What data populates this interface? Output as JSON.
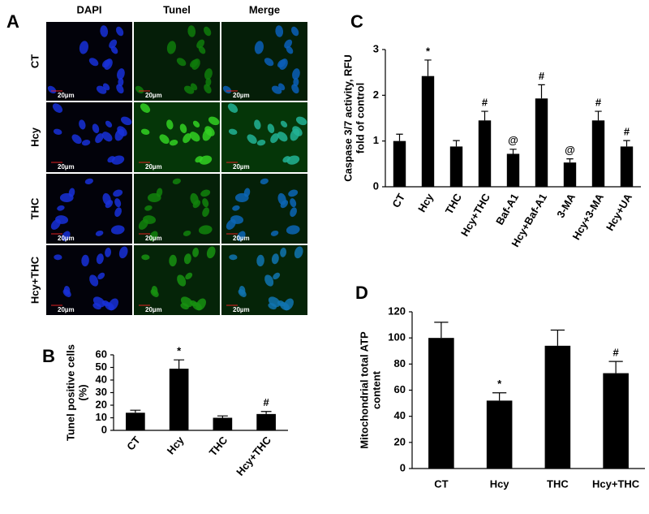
{
  "panel_a": {
    "panel": "A",
    "columns": [
      "DAPI",
      "Tunel",
      "Merge"
    ],
    "rows": [
      "CT",
      "Hcy",
      "THC",
      "Hcy+THC"
    ],
    "scale_bar": "20µm"
  },
  "chart_data": [
    {
      "type": "bar",
      "panel": "B",
      "ylabel": [
        "Tunel positive cells",
        "(%)"
      ],
      "categories": [
        "CT",
        "Hcy",
        "THC",
        "Hcy+THC"
      ],
      "values": [
        14,
        49,
        10,
        13
      ],
      "errors": [
        2,
        7,
        1.5,
        2
      ],
      "annotations": [
        null,
        "*",
        null,
        "#"
      ],
      "color": "#000000",
      "ylim": [
        0,
        60
      ],
      "yticks": [
        0,
        10,
        20,
        30,
        40,
        50,
        60
      ]
    },
    {
      "type": "bar",
      "panel": "C",
      "ylabel": [
        "Caspase 3/7 activity, RFU",
        "fold of control"
      ],
      "categories": [
        "CT",
        "Hcy",
        "THC",
        "Hcy+THC",
        "Baf-A1",
        "Hcy+Baf-A1",
        "3-MA",
        "Hcy+3-MA",
        "Hcy+UA"
      ],
      "values": [
        1.0,
        2.42,
        0.88,
        1.45,
        0.72,
        1.93,
        0.53,
        1.45,
        0.88
      ],
      "errors": [
        0.15,
        0.35,
        0.13,
        0.2,
        0.1,
        0.3,
        0.08,
        0.2,
        0.13
      ],
      "annotations": [
        null,
        "*",
        null,
        "#",
        "@",
        "#",
        "@",
        "#",
        "#"
      ],
      "color": "#000000",
      "ylim": [
        0,
        3
      ],
      "yticks": [
        0,
        1,
        2,
        3
      ]
    },
    {
      "type": "bar",
      "panel": "D",
      "ylabel": [
        "Mitochondrial total ATP",
        "content"
      ],
      "categories": [
        "CT",
        "Hcy",
        "THC",
        "Hcy+THC"
      ],
      "values": [
        100,
        52,
        94,
        73
      ],
      "errors": [
        12,
        6,
        12,
        9
      ],
      "annotations": [
        null,
        "*",
        null,
        "#"
      ],
      "color": "#000000",
      "ylim": [
        0,
        120
      ],
      "yticks": [
        0,
        20,
        40,
        60,
        80,
        100,
        120
      ]
    }
  ]
}
